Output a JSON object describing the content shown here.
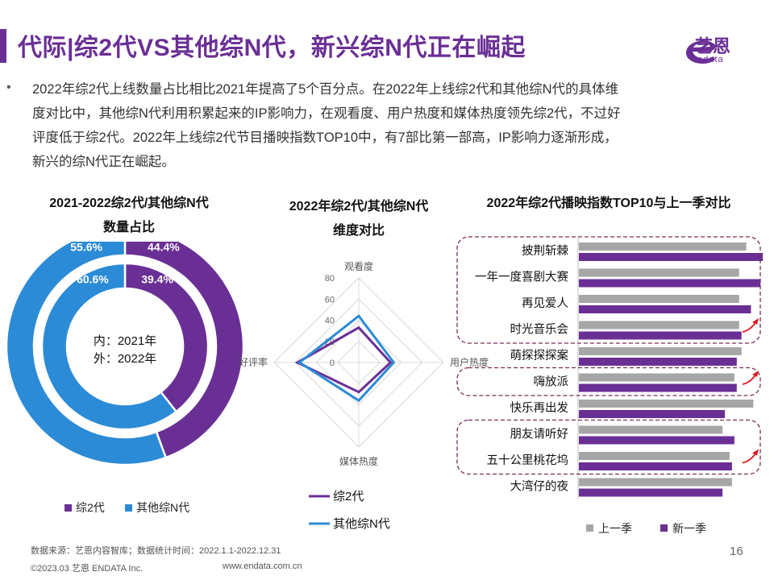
{
  "header": {
    "title": "代际|综2代VS其他综N代，新兴综N代正在崛起",
    "logo_text": "艺恩",
    "logo_sub": "endata"
  },
  "intro": {
    "bullet": "•",
    "lines": [
      "2022年综2代上线数量占比相比2021年提高了5个百分点。在2022年上线综2代和其他综N代的具体维",
      "度对比中，其他综N代利用积累起来的IP影响力，在观看度、用户热度和媒体热度领先综2代，不过好",
      "评度低于综2代。2022年上线综2代节目播映指数TOP10中，有7部比第一部高，IP影响力逐渐形成，",
      "新兴的综N代正在崛起。"
    ]
  },
  "colors": {
    "purple": "#6a2f95",
    "blue": "#2b8bd6",
    "gray": "#a6a6a6"
  },
  "chart_data": [
    {
      "type": "pie",
      "variant": "double-donut",
      "title_lines": [
        "2021-2022综2代/其他综N代",
        "数量占比"
      ],
      "center_labels": [
        "内：2021年",
        "外：2022年"
      ],
      "legend": [
        "综2代",
        "其他综N代"
      ],
      "rings": [
        {
          "name": "2021年",
          "ring": "inner",
          "values": [
            39.4,
            60.6
          ],
          "labels": [
            "39.4%",
            "60.6%"
          ]
        },
        {
          "name": "2022年",
          "ring": "outer",
          "values": [
            44.4,
            55.6
          ],
          "labels": [
            "44.4%",
            "55.6%"
          ]
        }
      ]
    },
    {
      "type": "radar",
      "title_lines": [
        "2022年综2代/其他综N代",
        "维度对比"
      ],
      "axes": [
        "观看度",
        "用户热度",
        "媒体热度",
        "好评率"
      ],
      "ticks": [
        "0",
        "20",
        "40",
        "60",
        "80"
      ],
      "rmax": 80,
      "series": [
        {
          "name": "综2代",
          "values": [
            33,
            30,
            28,
            58
          ]
        },
        {
          "name": "其他综N代",
          "values": [
            44,
            33,
            36,
            56
          ]
        }
      ]
    },
    {
      "type": "bar",
      "orientation": "horizontal",
      "title": "2022年综2代播映指数TOP10与上一季对比",
      "categories": [
        "披荆斩棘",
        "一年一度喜剧大赛",
        "再见爱人",
        "时光音乐会",
        "萌探探探案",
        "嗨放派",
        "快乐再出发",
        "朋友请听好",
        "五十公里桃花坞",
        "大湾仔的夜"
      ],
      "series": [
        {
          "name": "上一季",
          "values": [
            74,
            71,
            71,
            71,
            72,
            69,
            77,
            64,
            67,
            68
          ]
        },
        {
          "name": "新一季",
          "values": [
            81,
            80,
            76,
            72,
            70,
            70,
            65,
            69,
            68,
            64
          ]
        }
      ],
      "xlim": [
        0,
        100
      ]
    }
  ],
  "footer": {
    "source": "数据来源：艺恩内容智库；数据统计时间：2022.1.1-2022.12.31",
    "copyright": "©2023.03 艺恩 ENDATA Inc.",
    "url": "www.endata.com.cn",
    "page": "16"
  }
}
